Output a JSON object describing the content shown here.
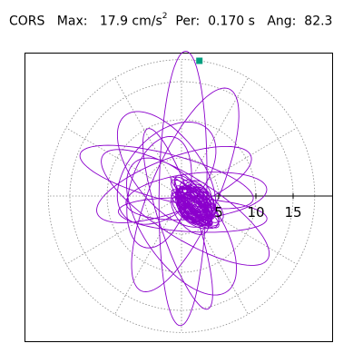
{
  "header": {
    "station": "CORS",
    "max_label": "Max:",
    "max_value": "17.9 cm/s",
    "max_exp": "2",
    "per_label": "Per:",
    "per_value": "0.170 s",
    "ang_label": "Ang:",
    "ang_value": "82.3"
  },
  "chart_data": {
    "type": "polar-orbit",
    "title": "",
    "rings": [
      5,
      10,
      15
    ],
    "ring_labels": [
      "5",
      "10",
      "15"
    ],
    "max_radius": 17.9,
    "grid": "dotted polar rings and 30° spokes",
    "peak_marker": {
      "magnitude": 17.9,
      "angle_deg": 82.3
    },
    "trace_color": "#8B00CC",
    "marker_color": "#009F80"
  }
}
